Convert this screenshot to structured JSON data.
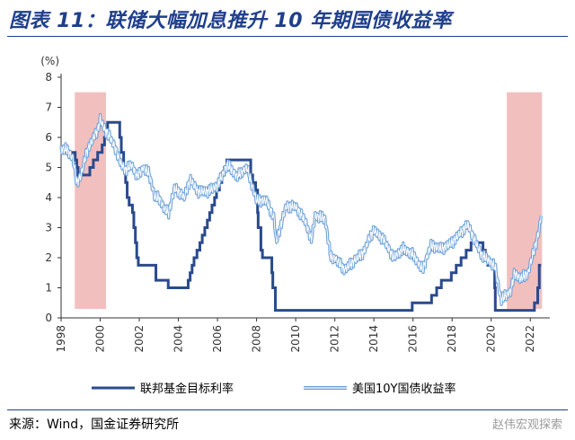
{
  "title": "图表 11：联储大幅加息推升 10 年期国债收益率",
  "source": "来源：Wind，国金证券研究所",
  "watermark": "赵伟宏观探索",
  "colors": {
    "fed": "#2a4a8c",
    "ust": "#6a9fd8",
    "shade": "#f0b4b4",
    "title": "#1f3f8c"
  },
  "chart_data": {
    "type": "line",
    "ylabel": "(%)",
    "ylim": [
      0,
      8
    ],
    "yticks": [
      0,
      1,
      2,
      3,
      4,
      5,
      6,
      7,
      8
    ],
    "xlim": [
      1998,
      2023
    ],
    "xticks": [
      "1998",
      "2000",
      "2002",
      "2004",
      "2006",
      "2008",
      "2010",
      "2012",
      "2014",
      "2016",
      "2018",
      "2020",
      "2022"
    ],
    "shaded_periods": [
      [
        1998.7,
        2000.3
      ],
      [
        2020.8,
        2022.6
      ]
    ],
    "legend_position": "bottom",
    "series": [
      {
        "name": "联邦基金目标利率",
        "style": "step",
        "x": [
          1998.0,
          1998.72,
          1998.8,
          1998.87,
          1999.47,
          1999.65,
          1999.87,
          2000.1,
          2000.22,
          2000.38,
          2001.0,
          2001.08,
          2001.2,
          2001.3,
          2001.38,
          2001.48,
          2001.65,
          2001.72,
          2001.8,
          2001.87,
          2001.95,
          2002.85,
          2003.48,
          2004.5,
          2004.6,
          2004.7,
          2004.8,
          2004.95,
          2005.1,
          2005.22,
          2005.35,
          2005.48,
          2005.6,
          2005.72,
          2005.85,
          2005.95,
          2006.1,
          2006.22,
          2006.35,
          2006.48,
          2007.7,
          2007.8,
          2007.95,
          2008.05,
          2008.08,
          2008.22,
          2008.3,
          2008.78,
          2008.83,
          2008.96,
          2015.96,
          2016.95,
          2017.21,
          2017.45,
          2017.96,
          2018.21,
          2018.46,
          2018.72,
          2018.97,
          2019.58,
          2019.7,
          2019.83,
          2020.18,
          2020.21,
          2022.21,
          2022.38,
          2022.46,
          2022.55
        ],
        "values": [
          5.5,
          5.25,
          5.0,
          4.75,
          5.0,
          5.25,
          5.5,
          5.75,
          6.0,
          6.5,
          6.0,
          5.5,
          5.0,
          4.5,
          4.0,
          3.75,
          3.5,
          3.0,
          2.5,
          2.0,
          1.75,
          1.25,
          1.0,
          1.25,
          1.5,
          1.75,
          2.0,
          2.25,
          2.5,
          2.75,
          3.0,
          3.25,
          3.5,
          3.75,
          4.0,
          4.25,
          4.5,
          4.75,
          5.0,
          5.25,
          4.75,
          4.5,
          4.25,
          3.5,
          3.0,
          2.25,
          2.0,
          1.5,
          1.0,
          0.25,
          0.5,
          0.75,
          1.0,
          1.25,
          1.5,
          1.75,
          2.0,
          2.25,
          2.5,
          2.25,
          2.0,
          1.75,
          1.0,
          0.25,
          0.5,
          1.0,
          1.75,
          1.75
        ]
      },
      {
        "name": "美国10Y国债收益率",
        "style": "line",
        "x": [
          1998.0,
          1998.3,
          1998.6,
          1998.8,
          1999.0,
          1999.3,
          1999.6,
          1999.9,
          2000.0,
          2000.2,
          2000.5,
          2000.8,
          2001.0,
          2001.3,
          2001.6,
          2001.9,
          2002.2,
          2002.5,
          2002.8,
          2003.0,
          2003.3,
          2003.5,
          2003.8,
          2004.0,
          2004.3,
          2004.6,
          2005.0,
          2005.5,
          2006.0,
          2006.5,
          2007.0,
          2007.5,
          2008.0,
          2008.5,
          2008.9,
          2009.0,
          2009.5,
          2010.0,
          2010.5,
          2010.8,
          2011.0,
          2011.5,
          2011.8,
          2012.0,
          2012.5,
          2013.0,
          2013.5,
          2013.8,
          2014.0,
          2014.5,
          2015.0,
          2015.5,
          2016.0,
          2016.5,
          2016.9,
          2017.5,
          2018.0,
          2018.8,
          2019.0,
          2019.5,
          2019.9,
          2020.2,
          2020.5,
          2021.0,
          2021.2,
          2021.5,
          2021.9,
          2022.0,
          2022.3,
          2022.45,
          2022.55
        ],
        "values": [
          5.6,
          5.6,
          5.3,
          4.5,
          4.7,
          5.5,
          5.9,
          6.3,
          6.6,
          6.3,
          6.0,
          5.6,
          5.2,
          4.9,
          5.1,
          4.7,
          5.0,
          4.8,
          4.0,
          4.0,
          3.6,
          3.5,
          4.3,
          4.2,
          4.0,
          4.6,
          4.2,
          4.2,
          4.4,
          5.1,
          4.7,
          5.0,
          3.9,
          3.9,
          3.3,
          2.5,
          3.7,
          3.7,
          3.2,
          2.6,
          3.4,
          3.3,
          2.0,
          2.0,
          1.6,
          1.9,
          2.2,
          2.7,
          2.9,
          2.6,
          2.0,
          2.3,
          2.1,
          1.6,
          2.4,
          2.3,
          2.5,
          3.1,
          2.8,
          2.1,
          1.9,
          1.7,
          0.6,
          0.9,
          1.5,
          1.3,
          1.5,
          1.8,
          2.5,
          2.9,
          3.4
        ]
      }
    ]
  }
}
